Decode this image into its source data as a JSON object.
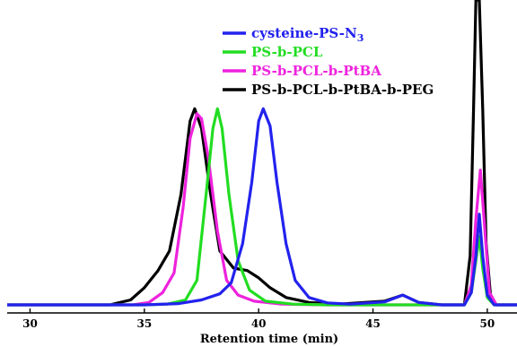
{
  "chart_data": {
    "type": "line",
    "xlabel": "Retention time (min)",
    "ylabel": "",
    "xlim": [
      29,
      51.3
    ],
    "ylim": [
      0,
      1.2
    ],
    "x_ticks": [
      30,
      35,
      40,
      45,
      50
    ],
    "grid": false,
    "legend_position": "top-center",
    "series": [
      {
        "name": "cysteine-PS-N3",
        "legend_main": "cysteine-PS-N",
        "legend_sub": "3",
        "color": "#2222ee",
        "points": [
          [
            29,
            0
          ],
          [
            35,
            0
          ],
          [
            36.5,
            0.005
          ],
          [
            37.5,
            0.02
          ],
          [
            38.3,
            0.045
          ],
          [
            38.8,
            0.09
          ],
          [
            39.3,
            0.25
          ],
          [
            39.7,
            0.5
          ],
          [
            40.0,
            0.75
          ],
          [
            40.2,
            0.8
          ],
          [
            40.5,
            0.73
          ],
          [
            40.8,
            0.5
          ],
          [
            41.2,
            0.25
          ],
          [
            41.6,
            0.1
          ],
          [
            42.2,
            0.03
          ],
          [
            43,
            0.008
          ],
          [
            44,
            0.003
          ],
          [
            45.5,
            0.012
          ],
          [
            46.3,
            0.04
          ],
          [
            47,
            0.01
          ],
          [
            48,
            0
          ],
          [
            49,
            0
          ],
          [
            49.3,
            0.05
          ],
          [
            49.5,
            0.2
          ],
          [
            49.65,
            0.37
          ],
          [
            49.8,
            0.2
          ],
          [
            50,
            0.04
          ],
          [
            50.3,
            0
          ],
          [
            51.3,
            0
          ]
        ]
      },
      {
        "name": "PS-b-PCL",
        "legend_main": "PS-b-PCL",
        "legend_sub": "",
        "color": "#22dd22",
        "points": [
          [
            29,
            0
          ],
          [
            35,
            0
          ],
          [
            36,
            0.003
          ],
          [
            36.8,
            0.02
          ],
          [
            37.3,
            0.1
          ],
          [
            37.7,
            0.45
          ],
          [
            38.0,
            0.72
          ],
          [
            38.2,
            0.8
          ],
          [
            38.4,
            0.72
          ],
          [
            38.7,
            0.45
          ],
          [
            39.1,
            0.18
          ],
          [
            39.6,
            0.06
          ],
          [
            40.3,
            0.015
          ],
          [
            41.5,
            0.003
          ],
          [
            43,
            0
          ],
          [
            49,
            0
          ],
          [
            49.3,
            0.05
          ],
          [
            49.5,
            0.18
          ],
          [
            49.65,
            0.28
          ],
          [
            49.8,
            0.15
          ],
          [
            50,
            0.03
          ],
          [
            50.3,
            0
          ],
          [
            51.3,
            0
          ]
        ]
      },
      {
        "name": "PS-b-PCL-b-PtBA",
        "legend_main": "PS-b-PCL-b-PtBA",
        "legend_sub": "",
        "color": "#ee22dd",
        "points": [
          [
            29,
            0
          ],
          [
            34.5,
            0
          ],
          [
            35.2,
            0.01
          ],
          [
            35.8,
            0.05
          ],
          [
            36.3,
            0.13
          ],
          [
            36.7,
            0.4
          ],
          [
            37.0,
            0.68
          ],
          [
            37.3,
            0.78
          ],
          [
            37.5,
            0.76
          ],
          [
            37.8,
            0.6
          ],
          [
            38.2,
            0.3
          ],
          [
            38.6,
            0.1
          ],
          [
            39.1,
            0.04
          ],
          [
            39.8,
            0.015
          ],
          [
            41,
            0.003
          ],
          [
            43,
            0
          ],
          [
            49,
            0
          ],
          [
            49.3,
            0.08
          ],
          [
            49.5,
            0.35
          ],
          [
            49.7,
            0.55
          ],
          [
            49.9,
            0.3
          ],
          [
            50.1,
            0.05
          ],
          [
            50.4,
            0
          ],
          [
            51.3,
            0
          ]
        ]
      },
      {
        "name": "PS-b-PCL-b-PtBA-b-PEG",
        "legend_main": "PS-b-PCL-b-PtBA-b-PEG",
        "legend_sub": "",
        "color": "#000000",
        "points": [
          [
            29,
            0
          ],
          [
            33.5,
            0
          ],
          [
            34.4,
            0.02
          ],
          [
            35,
            0.07
          ],
          [
            35.6,
            0.14
          ],
          [
            36.1,
            0.22
          ],
          [
            36.6,
            0.45
          ],
          [
            37.0,
            0.75
          ],
          [
            37.2,
            0.8
          ],
          [
            37.5,
            0.72
          ],
          [
            37.9,
            0.45
          ],
          [
            38.3,
            0.22
          ],
          [
            38.9,
            0.15
          ],
          [
            39.5,
            0.14
          ],
          [
            40.0,
            0.11
          ],
          [
            40.5,
            0.07
          ],
          [
            41.2,
            0.03
          ],
          [
            42.2,
            0.01
          ],
          [
            43.5,
            0.003
          ],
          [
            45.5,
            0.015
          ],
          [
            46.3,
            0.04
          ],
          [
            47,
            0.01
          ],
          [
            48,
            0
          ],
          [
            49.0,
            0
          ],
          [
            49.25,
            0.2
          ],
          [
            49.4,
            0.8
          ],
          [
            49.5,
            1.25
          ],
          [
            49.65,
            1.25
          ],
          [
            49.8,
            0.8
          ],
          [
            49.95,
            0.25
          ],
          [
            50.15,
            0.03
          ],
          [
            50.4,
            0
          ],
          [
            51.3,
            0
          ]
        ]
      }
    ]
  }
}
